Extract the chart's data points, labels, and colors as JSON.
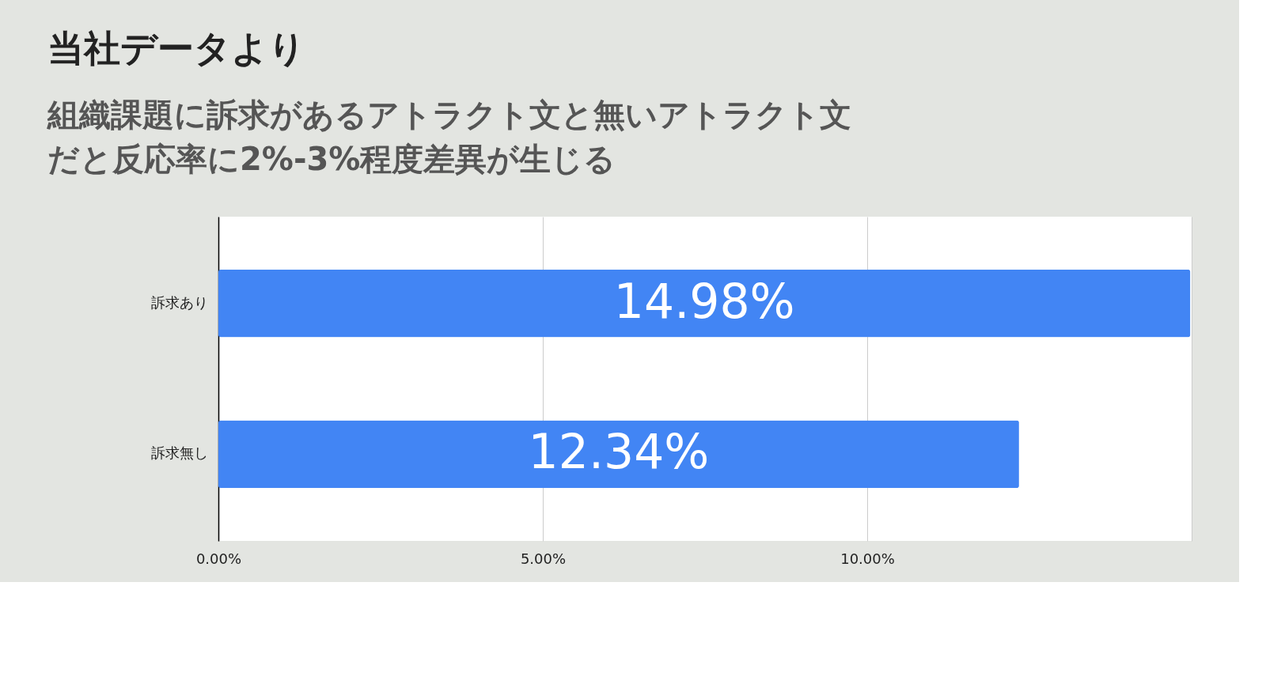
{
  "chart_data": {
    "type": "bar",
    "orientation": "horizontal",
    "title": "当社データより",
    "subtitle": "組織課題に訴求があるアトラクト文と無いアトラクト文だと反応率に2%-3%程度差異が生じる",
    "categories": [
      "訴求あり",
      "訴求無し"
    ],
    "values": [
      14.98,
      12.34
    ],
    "value_labels": [
      "14.98%",
      "12.34%"
    ],
    "color": "#4285f4",
    "xlim": [
      0,
      15
    ],
    "xticks": [
      {
        "value": 0,
        "label": "0.00%"
      },
      {
        "value": 5,
        "label": "5.00%"
      },
      {
        "value": 10,
        "label": "10.00%"
      },
      {
        "value": 15,
        "label": null
      }
    ],
    "grid": "x"
  }
}
